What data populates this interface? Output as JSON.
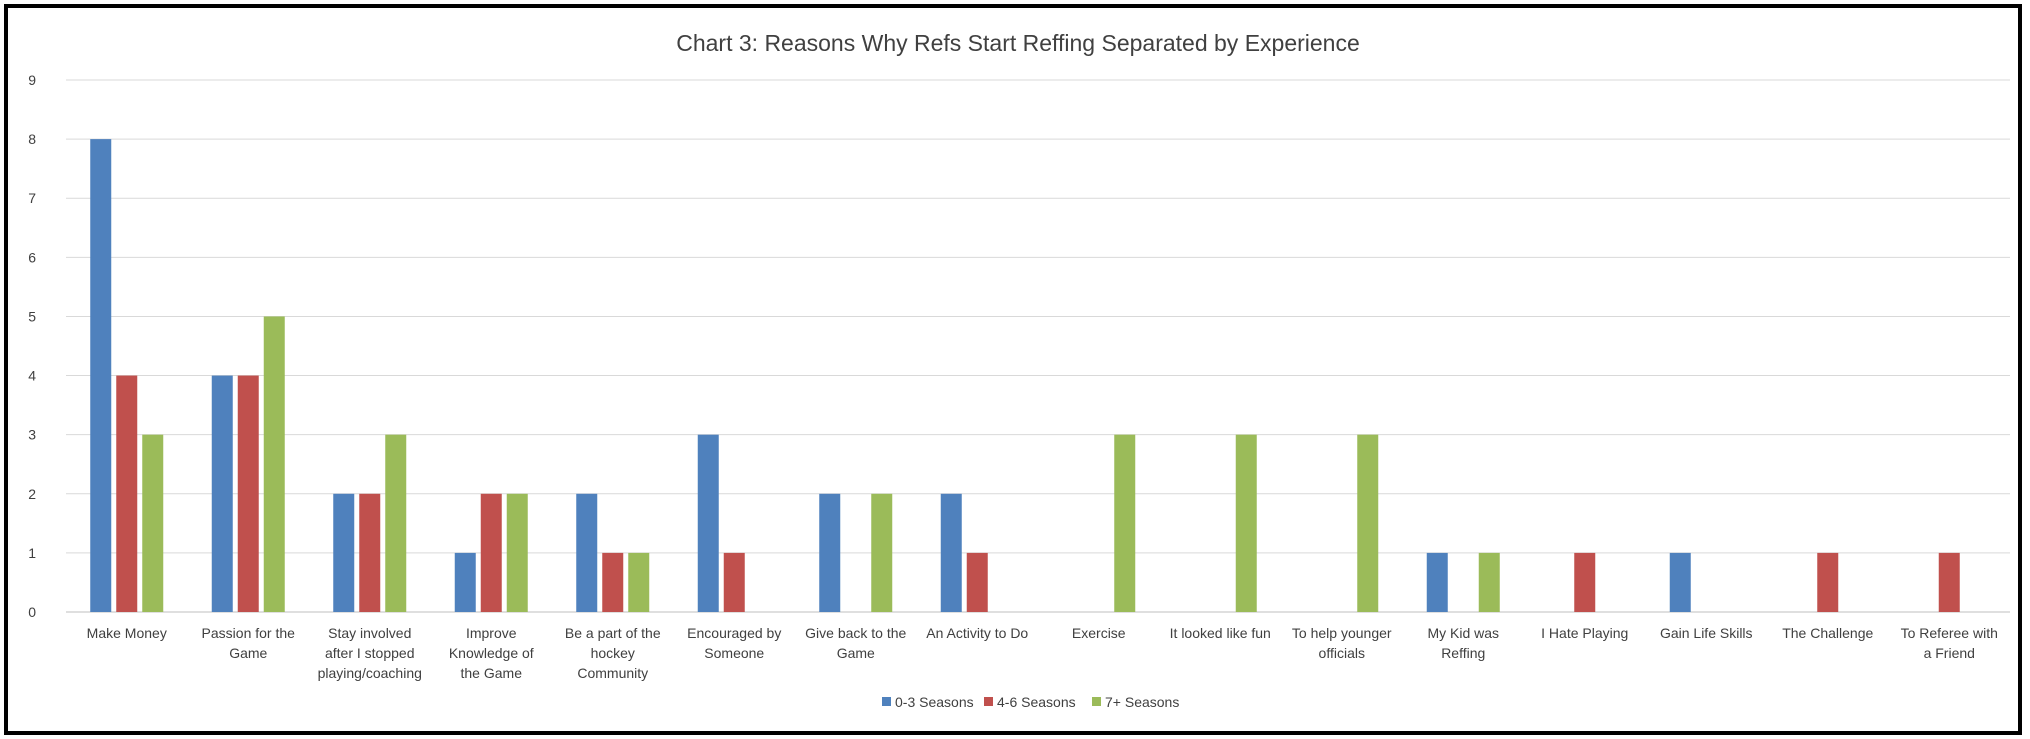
{
  "chart_data": {
    "type": "bar",
    "title": "Chart 3: Reasons Why Refs Start Reffing Separated by Experience",
    "xlabel": "",
    "ylabel": "",
    "ylim": [
      0,
      9
    ],
    "yticks": [
      0,
      1,
      2,
      3,
      4,
      5,
      6,
      7,
      8,
      9
    ],
    "grid": true,
    "legend_position": "bottom",
    "categories": [
      [
        "Make Money"
      ],
      [
        "Passion for the",
        "Game"
      ],
      [
        "Stay involved",
        "after I stopped",
        "playing/coaching"
      ],
      [
        "Improve",
        "Knowledge of",
        "the Game"
      ],
      [
        "Be a part of the",
        "hockey",
        "Community"
      ],
      [
        "Encouraged by",
        "Someone"
      ],
      [
        "Give back to the",
        "Game"
      ],
      [
        "An Activity to Do"
      ],
      [
        "Exercise"
      ],
      [
        "It looked like fun"
      ],
      [
        "To help younger",
        "officials"
      ],
      [
        "My Kid was",
        "Reffing"
      ],
      [
        "I Hate Playing"
      ],
      [
        "Gain Life Skills"
      ],
      [
        "The Challenge"
      ],
      [
        "To Referee with",
        "a Friend"
      ]
    ],
    "series": [
      {
        "name": "0-3 Seasons",
        "color": "#4F81BD",
        "values": [
          8,
          4,
          2,
          1,
          2,
          3,
          2,
          2,
          0,
          0,
          0,
          1,
          0,
          1,
          0,
          0
        ]
      },
      {
        "name": "4-6 Seasons",
        "color": "#C0504D",
        "values": [
          4,
          4,
          2,
          2,
          1,
          1,
          0,
          1,
          0,
          0,
          0,
          0,
          1,
          0,
          1,
          1
        ]
      },
      {
        "name": "7+ Seasons",
        "color": "#9BBB59",
        "values": [
          3,
          5,
          3,
          2,
          1,
          0,
          2,
          0,
          3,
          3,
          3,
          1,
          0,
          0,
          0,
          0
        ]
      }
    ]
  }
}
